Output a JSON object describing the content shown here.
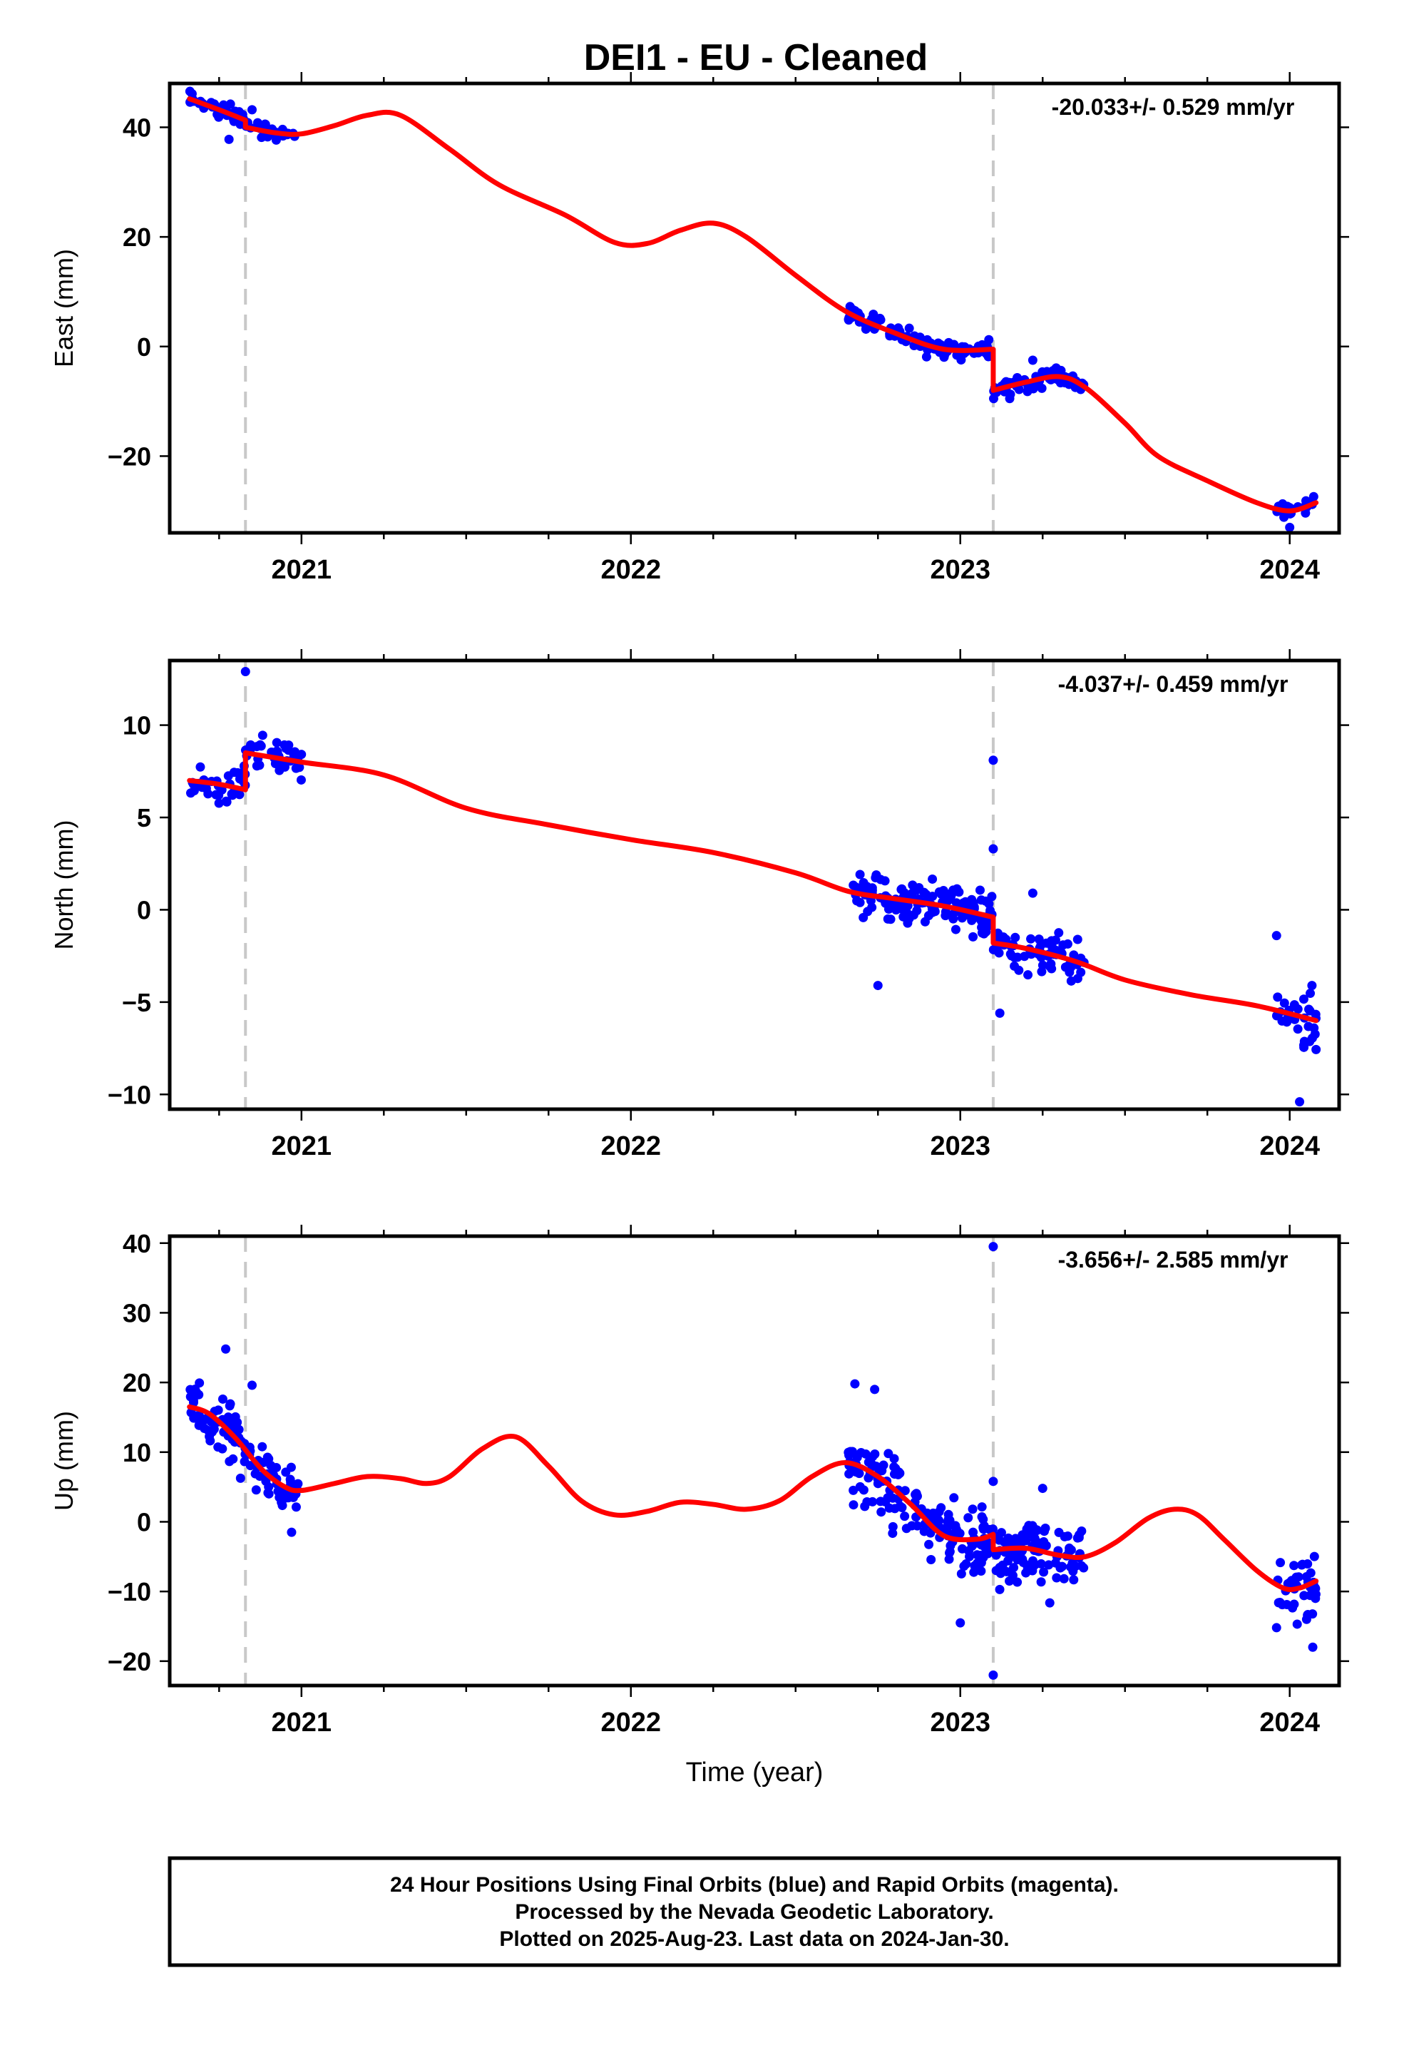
{
  "title": "DEI1  - EU - Cleaned",
  "footer": {
    "line1": "24 Hour Positions Using Final Orbits (blue) and Rapid Orbits (magenta).",
    "line2": "Processed by the Nevada Geodetic Laboratory.",
    "line3": "Plotted on 2025-Aug-23. Last data on 2024-Jan-30."
  },
  "colors": {
    "points": "#0000ff",
    "model": "#ff0000",
    "breaks": "#c8c8c8",
    "frame": "#000000"
  },
  "chart_data": [
    {
      "type": "scatter",
      "ylabel": "East (mm)",
      "xlabel": "",
      "rate": "-20.033+/- 0.529 mm/yr",
      "xlim": [
        2020.6,
        2024.15
      ],
      "ylim": [
        -34,
        48
      ],
      "xticks": [
        2021,
        2022,
        2023,
        2024
      ],
      "yticks": [
        40,
        20,
        0,
        -20
      ],
      "ytick_labels": [
        "40",
        "20",
        "0",
        "−20"
      ],
      "breaks": [
        2020.83,
        2023.1
      ],
      "model": {
        "segments": [
          [
            [
              2020.66,
              45.2
            ],
            [
              2020.75,
              43.2
            ],
            [
              2020.83,
              41.3
            ]
          ],
          [
            [
              2020.83,
              40.0
            ],
            [
              2020.92,
              39.0
            ],
            [
              2021.0,
              38.8
            ],
            [
              2021.1,
              40.3
            ],
            [
              2021.2,
              42.2
            ],
            [
              2021.3,
              42.2
            ],
            [
              2021.45,
              36.0
            ],
            [
              2021.6,
              29.5
            ],
            [
              2021.8,
              24.0
            ],
            [
              2021.95,
              19.0
            ],
            [
              2022.05,
              18.8
            ],
            [
              2022.15,
              21.2
            ],
            [
              2022.25,
              22.5
            ],
            [
              2022.35,
              20.0
            ],
            [
              2022.5,
              13.0
            ],
            [
              2022.65,
              6.5
            ],
            [
              2022.8,
              2.5
            ],
            [
              2022.95,
              -0.5
            ],
            [
              2023.1,
              -0.5
            ]
          ],
          [
            [
              2023.1,
              -8.0
            ],
            [
              2023.2,
              -6.5
            ],
            [
              2023.3,
              -5.5
            ],
            [
              2023.38,
              -7.5
            ],
            [
              2023.5,
              -14.0
            ],
            [
              2023.6,
              -20.0
            ],
            [
              2023.75,
              -24.5
            ],
            [
              2023.9,
              -28.5
            ],
            [
              2024.0,
              -30.0
            ],
            [
              2024.08,
              -28.5
            ]
          ]
        ]
      },
      "points": {
        "clusters": [
          {
            "x_range": [
              2020.66,
              2020.98
            ],
            "count": 70,
            "noise": 1.6,
            "outliers": [
              [
                2020.85,
                43.2
              ],
              [
                2020.78,
                37.8
              ]
            ]
          },
          {
            "x_range": [
              2022.66,
              2023.1
            ],
            "count": 110,
            "noise": 1.6,
            "outliers": []
          },
          {
            "x_range": [
              2023.1,
              2023.38
            ],
            "count": 70,
            "noise": 1.8,
            "outliers": [
              [
                2023.22,
                -2.5
              ],
              [
                2023.15,
                -9.5
              ]
            ]
          },
          {
            "x_range": [
              2023.96,
              2024.08
            ],
            "count": 25,
            "noise": 1.6,
            "outliers": [
              [
                2024.0,
                -33.0
              ]
            ]
          }
        ]
      }
    },
    {
      "type": "scatter",
      "ylabel": "North (mm)",
      "xlabel": "",
      "rate": "-4.037+/- 0.459 mm/yr",
      "xlim": [
        2020.6,
        2024.15
      ],
      "ylim": [
        -10.8,
        13.5
      ],
      "xticks": [
        2021,
        2022,
        2023,
        2024
      ],
      "yticks": [
        10,
        5,
        0,
        -5,
        -10
      ],
      "ytick_labels": [
        "10",
        "5",
        "0",
        "−5",
        "−10"
      ],
      "breaks": [
        2020.83,
        2023.1
      ],
      "model": {
        "segments": [
          [
            [
              2020.66,
              7.0
            ],
            [
              2020.75,
              6.8
            ],
            [
              2020.83,
              6.5
            ]
          ],
          [
            [
              2020.83,
              8.5
            ],
            [
              2021.0,
              8.0
            ],
            [
              2021.25,
              7.3
            ],
            [
              2021.5,
              5.5
            ],
            [
              2021.75,
              4.6
            ],
            [
              2022.0,
              3.8
            ],
            [
              2022.25,
              3.1
            ],
            [
              2022.5,
              2.0
            ],
            [
              2022.66,
              1.0
            ],
            [
              2022.8,
              0.6
            ],
            [
              2022.95,
              0.2
            ],
            [
              2023.1,
              -0.4
            ]
          ],
          [
            [
              2023.1,
              -1.8
            ],
            [
              2023.2,
              -2.1
            ],
            [
              2023.35,
              -2.8
            ],
            [
              2023.5,
              -3.8
            ],
            [
              2023.7,
              -4.6
            ],
            [
              2023.9,
              -5.2
            ],
            [
              2024.08,
              -6.0
            ]
          ]
        ]
      },
      "points": {
        "clusters": [
          {
            "x_range": [
              2020.66,
              2021.0
            ],
            "count": 80,
            "noise": 1.1,
            "outliers": [
              [
                2020.83,
                12.9
              ]
            ]
          },
          {
            "x_range": [
              2022.66,
              2023.1
            ],
            "count": 150,
            "noise": 1.2,
            "outliers": [
              [
                2022.75,
                -4.1
              ],
              [
                2023.1,
                8.1
              ],
              [
                2023.1,
                3.3
              ]
            ]
          },
          {
            "x_range": [
              2023.1,
              2023.38
            ],
            "count": 70,
            "noise": 1.1,
            "outliers": [
              [
                2023.22,
                0.9
              ],
              [
                2023.12,
                -5.6
              ]
            ]
          },
          {
            "x_range": [
              2023.96,
              2024.08
            ],
            "count": 30,
            "noise": 1.4,
            "outliers": [
              [
                2023.96,
                -1.4
              ],
              [
                2024.03,
                -10.4
              ]
            ]
          }
        ]
      }
    },
    {
      "type": "scatter",
      "ylabel": "Up (mm)",
      "xlabel": "Time (year)",
      "rate": "-3.656+/- 2.585 mm/yr",
      "xlim": [
        2020.6,
        2024.15
      ],
      "ylim": [
        -23.5,
        41
      ],
      "xticks": [
        2021,
        2022,
        2023,
        2024
      ],
      "yticks": [
        40,
        30,
        20,
        10,
        0,
        -10,
        -20
      ],
      "ytick_labels": [
        "40",
        "30",
        "20",
        "10",
        "0",
        "−10",
        "−20"
      ],
      "breaks": [
        2020.83,
        2023.1
      ],
      "model": {
        "segments": [
          [
            [
              2020.66,
              16.5
            ],
            [
              2020.72,
              15.5
            ],
            [
              2020.8,
              12.0
            ],
            [
              2020.88,
              7.5
            ],
            [
              2020.95,
              5.0
            ],
            [
              2021.0,
              4.5
            ],
            [
              2021.1,
              5.5
            ],
            [
              2021.2,
              6.5
            ],
            [
              2021.3,
              6.2
            ],
            [
              2021.38,
              5.5
            ],
            [
              2021.45,
              6.5
            ],
            [
              2021.55,
              10.5
            ],
            [
              2021.65,
              12.2
            ],
            [
              2021.75,
              8.0
            ],
            [
              2021.85,
              3.0
            ],
            [
              2021.95,
              1.0
            ],
            [
              2022.05,
              1.5
            ],
            [
              2022.15,
              2.8
            ],
            [
              2022.25,
              2.5
            ],
            [
              2022.35,
              1.8
            ],
            [
              2022.45,
              3.0
            ],
            [
              2022.55,
              6.5
            ],
            [
              2022.65,
              8.5
            ],
            [
              2022.75,
              6.5
            ],
            [
              2022.85,
              2.5
            ],
            [
              2022.95,
              -2.0
            ],
            [
              2023.05,
              -2.5
            ],
            [
              2023.1,
              -1.8
            ]
          ],
          [
            [
              2023.1,
              -4.0
            ],
            [
              2023.2,
              -3.8
            ],
            [
              2023.3,
              -4.8
            ],
            [
              2023.38,
              -5.0
            ],
            [
              2023.47,
              -3.0
            ],
            [
              2023.57,
              0.5
            ],
            [
              2023.65,
              1.8
            ],
            [
              2023.72,
              1.0
            ],
            [
              2023.8,
              -2.5
            ],
            [
              2023.9,
              -7.0
            ],
            [
              2023.98,
              -9.5
            ],
            [
              2024.03,
              -9.5
            ],
            [
              2024.08,
              -8.5
            ]
          ]
        ]
      },
      "points": {
        "clusters": [
          {
            "x_range": [
              2020.66,
              2020.99
            ],
            "count": 110,
            "noise": 4.2,
            "outliers": [
              [
                2020.77,
                24.8
              ],
              [
                2020.85,
                19.6
              ],
              [
                2020.97,
                -1.5
              ]
            ]
          },
          {
            "x_range": [
              2022.66,
              2023.1
            ],
            "count": 160,
            "noise": 5.0,
            "outliers": [
              [
                2022.68,
                19.8
              ],
              [
                2022.74,
                19.0
              ],
              [
                2023.0,
                -14.5
              ],
              [
                2023.1,
                39.5
              ],
              [
                2023.1,
                5.8
              ]
            ]
          },
          {
            "x_range": [
              2023.1,
              2023.38
            ],
            "count": 100,
            "noise": 4.5,
            "outliers": [
              [
                2023.1,
                -22.0
              ],
              [
                2023.25,
                4.8
              ]
            ]
          },
          {
            "x_range": [
              2023.96,
              2024.08
            ],
            "count": 40,
            "noise": 5.0,
            "outliers": [
              [
                2024.07,
                -18.0
              ],
              [
                2023.96,
                -15.2
              ]
            ]
          }
        ]
      }
    }
  ]
}
